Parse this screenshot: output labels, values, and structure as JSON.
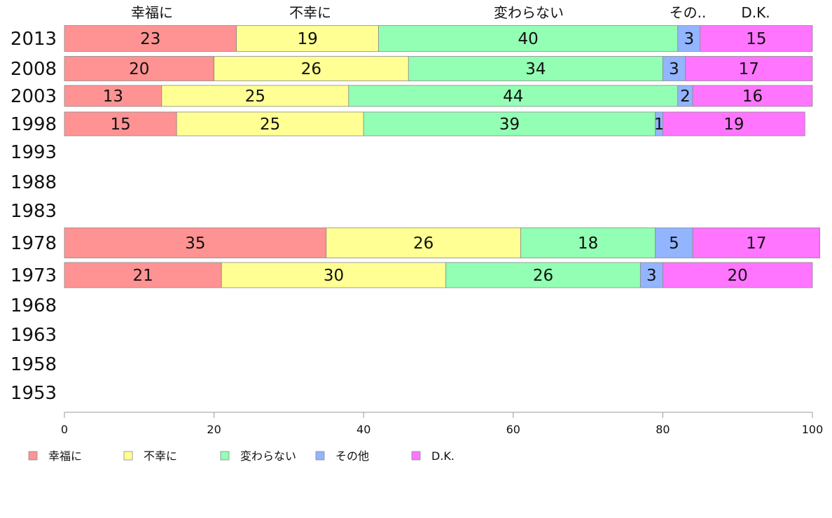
{
  "chart_data": {
    "type": "bar",
    "orientation": "horizontal",
    "stacked": true,
    "categories": [
      "2013",
      "2008",
      "2003",
      "1998",
      "1993",
      "1988",
      "1983",
      "1978",
      "1973",
      "1968",
      "1963",
      "1958",
      "1953"
    ],
    "column_labels": [
      "幸福に",
      "不幸に",
      "変わらない",
      "その..",
      "D.K."
    ],
    "series": [
      {
        "name": "幸福に",
        "color": "#ff9393",
        "values": [
          23,
          20,
          13,
          15,
          null,
          null,
          null,
          35,
          21,
          null,
          null,
          null,
          null
        ]
      },
      {
        "name": "不幸に",
        "color": "#ffff93",
        "values": [
          19,
          26,
          25,
          25,
          null,
          null,
          null,
          26,
          30,
          null,
          null,
          null,
          null
        ]
      },
      {
        "name": "変わらない",
        "color": "#93ffb4",
        "values": [
          40,
          34,
          44,
          39,
          null,
          null,
          null,
          18,
          26,
          null,
          null,
          null,
          null
        ]
      },
      {
        "name": "その他",
        "color": "#93b4ff",
        "values": [
          3,
          3,
          2,
          1,
          null,
          null,
          null,
          5,
          3,
          null,
          null,
          null,
          null
        ]
      },
      {
        "name": "D.K.",
        "color": "#ff75ff",
        "values": [
          15,
          17,
          16,
          19,
          null,
          null,
          null,
          17,
          20,
          null,
          null,
          null,
          null
        ]
      }
    ],
    "xlim": [
      0,
      100
    ],
    "xticks": [
      "0",
      "20",
      "40",
      "60",
      "80",
      "100"
    ],
    "legend_position": "bottom-left",
    "grid": false
  }
}
